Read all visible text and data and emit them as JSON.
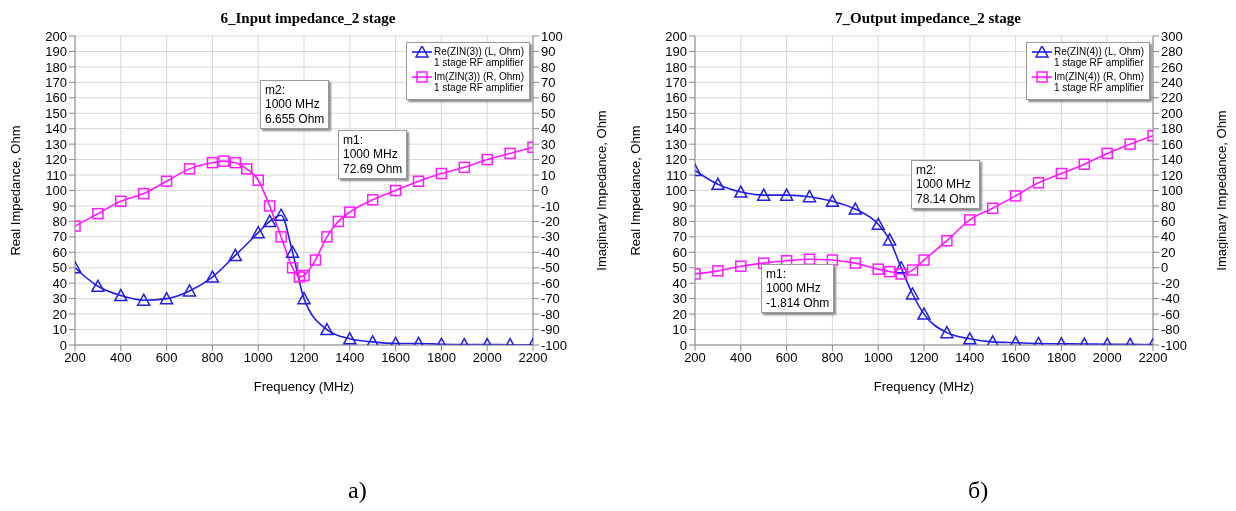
{
  "chart_data": [
    {
      "type": "line",
      "title": "6_Input impedance_2 stage",
      "xlabel": "Frequency (MHz)",
      "ylabel": "Real Impedance, Ohm",
      "y2label": "Imaginary Impedance, Ohm",
      "xlim": [
        200,
        2200
      ],
      "xticks": [
        200,
        400,
        600,
        800,
        1000,
        1200,
        1400,
        1600,
        1800,
        2000,
        2200
      ],
      "ylim": [
        0,
        200
      ],
      "yticks": [
        0,
        10,
        20,
        30,
        40,
        50,
        60,
        70,
        80,
        90,
        100,
        110,
        120,
        130,
        140,
        150,
        160,
        170,
        180,
        190,
        200
      ],
      "y2lim": [
        -100,
        100
      ],
      "y2ticks": [
        -100,
        -90,
        -80,
        -70,
        -60,
        -50,
        -40,
        -30,
        -20,
        -10,
        0,
        10,
        20,
        30,
        40,
        50,
        60,
        70,
        80,
        90,
        100
      ],
      "grid": true,
      "legend": "top right",
      "annotations": [
        "m2:\n1000 MHz\n6.655 Ohm",
        "m1:\n1000 MHz\n72.69 Ohm",
        "а)"
      ],
      "series": [
        {
          "name": "Re(ZIN(3)) (L, Ohm)\n1 stage RF amplifier",
          "color": "#1f1fe6",
          "marker": "triangle",
          "x": [
            200,
            300,
            400,
            500,
            600,
            700,
            800,
            900,
            1000,
            1050,
            1100,
            1150,
            1200,
            1300,
            1400,
            1500,
            1600,
            1700,
            1800,
            1900,
            2000,
            2100,
            2200
          ],
          "values": [
            50,
            38,
            32,
            29,
            30,
            35,
            44,
            58,
            72.69,
            80,
            84,
            60,
            30,
            10,
            4,
            2,
            1,
            1,
            0.5,
            0.3,
            0.3,
            0.2,
            0.2
          ]
        },
        {
          "name": "Im(ZIN(3)) (R, Ohm)\n1 stage RF amplifier",
          "color": "#ff1aff",
          "marker": "square",
          "axis": "y2",
          "x": [
            200,
            300,
            400,
            500,
            600,
            700,
            800,
            850,
            900,
            950,
            1000,
            1050,
            1100,
            1150,
            1180,
            1200,
            1250,
            1300,
            1350,
            1400,
            1500,
            1600,
            1700,
            1800,
            1900,
            2000,
            2100,
            2200
          ],
          "values": [
            -23,
            -15,
            -7,
            -2,
            6,
            14,
            18,
            19,
            18,
            14,
            6.655,
            -10,
            -30,
            -50,
            -56,
            -55,
            -45,
            -30,
            -20,
            -14,
            -6,
            0,
            6,
            11,
            15,
            20,
            24,
            28
          ]
        }
      ]
    },
    {
      "type": "line",
      "title": "7_Output impedance_2 stage",
      "xlabel": "Frequency (MHz)",
      "ylabel": "Real Impedance, Ohm",
      "y2label": "Imaginary Impedance, Ohm",
      "xlim": [
        200,
        2200
      ],
      "xticks": [
        200,
        400,
        600,
        800,
        1000,
        1200,
        1400,
        1600,
        1800,
        2000,
        2200
      ],
      "ylim": [
        0,
        200
      ],
      "yticks": [
        0,
        10,
        20,
        30,
        40,
        50,
        60,
        70,
        80,
        90,
        100,
        110,
        120,
        130,
        140,
        150,
        160,
        170,
        180,
        190,
        200
      ],
      "y2lim": [
        -100,
        300
      ],
      "y2ticks": [
        -100,
        -80,
        -60,
        -40,
        -20,
        0,
        20,
        40,
        60,
        80,
        100,
        120,
        140,
        160,
        180,
        200,
        220,
        240,
        260,
        280,
        300
      ],
      "grid": true,
      "legend": "top right",
      "annotations": [
        "m2:\n1000 MHz\n78.14 Ohm",
        "m1:\n1000 MHz\n-1.814 Ohm",
        "б)"
      ],
      "series": [
        {
          "name": "Re(ZIN(4)) (L, Ohm)\n1 stage RF amplifier",
          "color": "#1f1fe6",
          "marker": "triangle",
          "x": [
            200,
            300,
            400,
            500,
            600,
            700,
            800,
            900,
            1000,
            1050,
            1100,
            1150,
            1200,
            1300,
            1400,
            1500,
            1600,
            1700,
            1800,
            1900,
            2000,
            2100,
            2200
          ],
          "values": [
            113,
            104,
            99,
            97,
            97,
            96,
            93,
            88,
            78.14,
            68,
            50,
            33,
            20,
            8,
            4,
            2,
            1.5,
            1,
            0.8,
            0.6,
            0.5,
            0.4,
            0.3
          ]
        },
        {
          "name": "Im(ZIN(4)) (R, Ohm)\n1 stage RF amplifier",
          "color": "#ff1aff",
          "marker": "square",
          "axis": "y2",
          "x": [
            200,
            300,
            400,
            500,
            600,
            700,
            800,
            900,
            1000,
            1050,
            1100,
            1150,
            1200,
            1300,
            1400,
            1500,
            1600,
            1700,
            1800,
            1900,
            2000,
            2100,
            2200
          ],
          "values": [
            -8,
            -4,
            2,
            6,
            9,
            11,
            10,
            6,
            -1.814,
            -5,
            -8,
            -3,
            10,
            35,
            62,
            77,
            93,
            110,
            122,
            134,
            148,
            160,
            171
          ]
        }
      ]
    }
  ]
}
